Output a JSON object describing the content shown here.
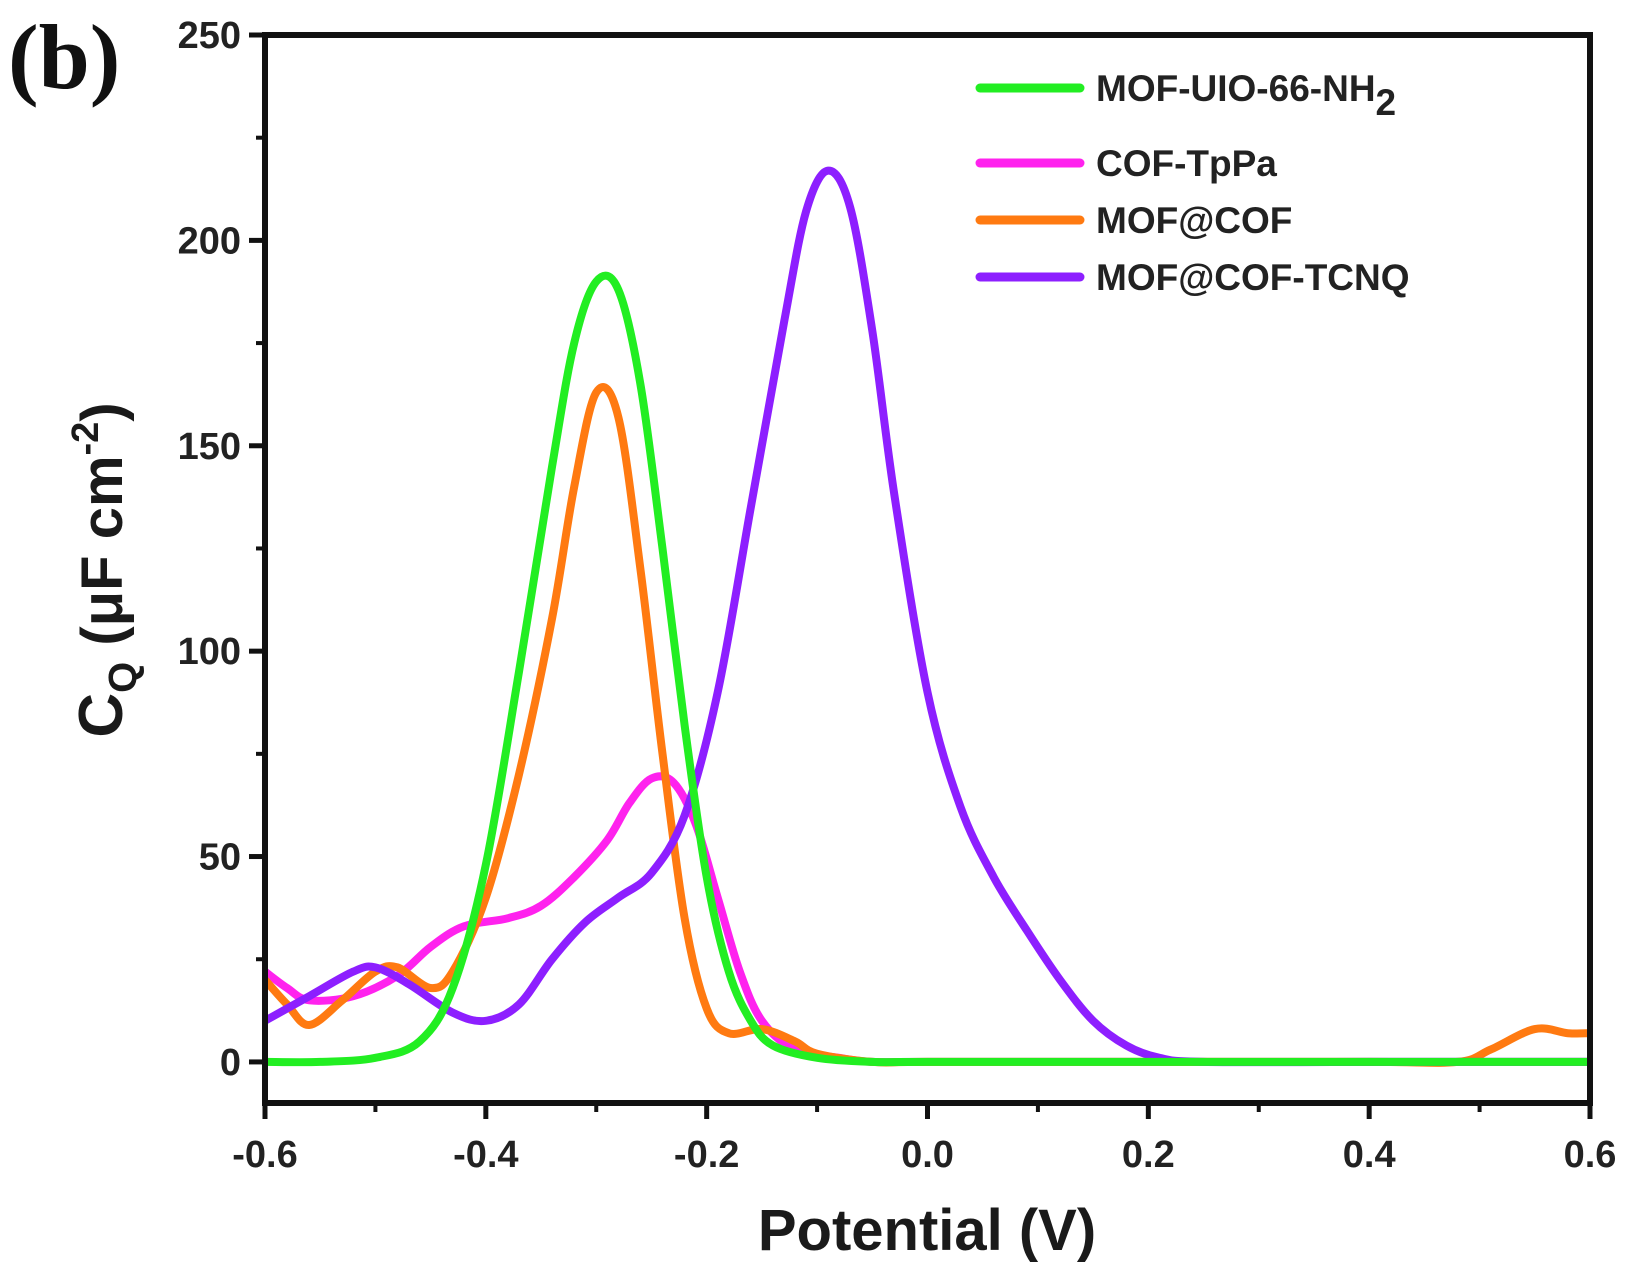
{
  "panel_label": "(b)",
  "chart_data": {
    "type": "line",
    "xlabel": "Potential (V)",
    "ylabel_main": "C",
    "ylabel_sub": "Q",
    "ylabel_unit": " (μF cm",
    "ylabel_sup": "-2",
    "ylabel_close": ")",
    "xlim": [
      -0.6,
      0.6
    ],
    "ylim": [
      -10,
      250
    ],
    "x_ticks": [
      -0.6,
      -0.4,
      -0.2,
      0.0,
      0.2,
      0.4,
      0.6
    ],
    "x_tick_labels": [
      "-0.6",
      "-0.4",
      "-0.2",
      "0.0",
      "0.2",
      "0.4",
      "0.6"
    ],
    "y_ticks": [
      0,
      50,
      100,
      150,
      200,
      250
    ],
    "y_tick_labels": [
      "0",
      "50",
      "100",
      "150",
      "200",
      "250"
    ],
    "legend_position": "top-right",
    "series": [
      {
        "name": "MOF-UIO-66-NH",
        "name_sub": "2",
        "color": "#22ee22",
        "points": [
          [
            -0.6,
            0
          ],
          [
            -0.55,
            0
          ],
          [
            -0.5,
            1
          ],
          [
            -0.46,
            5
          ],
          [
            -0.43,
            18
          ],
          [
            -0.4,
            48
          ],
          [
            -0.37,
            95
          ],
          [
            -0.34,
            145
          ],
          [
            -0.32,
            175
          ],
          [
            -0.3,
            190
          ],
          [
            -0.28,
            188
          ],
          [
            -0.26,
            165
          ],
          [
            -0.24,
            125
          ],
          [
            -0.22,
            82
          ],
          [
            -0.2,
            45
          ],
          [
            -0.18,
            22
          ],
          [
            -0.16,
            10
          ],
          [
            -0.14,
            4
          ],
          [
            -0.1,
            1
          ],
          [
            -0.05,
            0
          ],
          [
            0.0,
            0
          ],
          [
            0.2,
            0
          ],
          [
            0.4,
            0
          ],
          [
            0.6,
            0
          ]
        ]
      },
      {
        "name": "COF-TpPa",
        "color": "#ff22ee",
        "points": [
          [
            -0.6,
            22
          ],
          [
            -0.58,
            18
          ],
          [
            -0.56,
            15
          ],
          [
            -0.52,
            16
          ],
          [
            -0.48,
            21
          ],
          [
            -0.45,
            28
          ],
          [
            -0.42,
            33
          ],
          [
            -0.38,
            35
          ],
          [
            -0.35,
            38
          ],
          [
            -0.32,
            45
          ],
          [
            -0.29,
            54
          ],
          [
            -0.27,
            63
          ],
          [
            -0.25,
            69
          ],
          [
            -0.23,
            68
          ],
          [
            -0.21,
            58
          ],
          [
            -0.19,
            40
          ],
          [
            -0.17,
            22
          ],
          [
            -0.15,
            10
          ],
          [
            -0.12,
            3
          ],
          [
            -0.08,
            1
          ],
          [
            -0.05,
            0
          ],
          [
            0.0,
            0
          ],
          [
            0.2,
            0
          ],
          [
            0.4,
            0
          ],
          [
            0.6,
            0
          ]
        ]
      },
      {
        "name": "MOF@COF",
        "color": "#ff7a11",
        "points": [
          [
            -0.6,
            20
          ],
          [
            -0.58,
            14
          ],
          [
            -0.56,
            9
          ],
          [
            -0.53,
            15
          ],
          [
            -0.5,
            22
          ],
          [
            -0.48,
            23
          ],
          [
            -0.45,
            18
          ],
          [
            -0.43,
            22
          ],
          [
            -0.4,
            40
          ],
          [
            -0.37,
            70
          ],
          [
            -0.34,
            108
          ],
          [
            -0.32,
            140
          ],
          [
            -0.3,
            163
          ],
          [
            -0.28,
            157
          ],
          [
            -0.26,
            120
          ],
          [
            -0.24,
            75
          ],
          [
            -0.22,
            35
          ],
          [
            -0.2,
            13
          ],
          [
            -0.18,
            7
          ],
          [
            -0.15,
            8
          ],
          [
            -0.12,
            5
          ],
          [
            -0.1,
            2
          ],
          [
            -0.05,
            0
          ],
          [
            0.0,
            0
          ],
          [
            0.2,
            0
          ],
          [
            0.4,
            0
          ],
          [
            0.48,
            0
          ],
          [
            0.51,
            3
          ],
          [
            0.55,
            8
          ],
          [
            0.58,
            7
          ],
          [
            0.6,
            7
          ]
        ]
      },
      {
        "name": "MOF@COF-TCNQ",
        "color": "#8d1fff",
        "points": [
          [
            -0.6,
            10
          ],
          [
            -0.56,
            16
          ],
          [
            -0.52,
            22
          ],
          [
            -0.5,
            23
          ],
          [
            -0.47,
            19
          ],
          [
            -0.43,
            12
          ],
          [
            -0.4,
            10
          ],
          [
            -0.37,
            14
          ],
          [
            -0.34,
            25
          ],
          [
            -0.31,
            34
          ],
          [
            -0.28,
            40
          ],
          [
            -0.25,
            46
          ],
          [
            -0.22,
            60
          ],
          [
            -0.19,
            90
          ],
          [
            -0.16,
            135
          ],
          [
            -0.13,
            180
          ],
          [
            -0.11,
            207
          ],
          [
            -0.09,
            217
          ],
          [
            -0.07,
            208
          ],
          [
            -0.05,
            178
          ],
          [
            -0.03,
            138
          ],
          [
            0.0,
            90
          ],
          [
            0.03,
            62
          ],
          [
            0.06,
            45
          ],
          [
            0.09,
            32
          ],
          [
            0.12,
            20
          ],
          [
            0.15,
            10
          ],
          [
            0.18,
            4
          ],
          [
            0.21,
            1
          ],
          [
            0.25,
            0
          ],
          [
            0.4,
            0
          ],
          [
            0.6,
            0
          ]
        ]
      }
    ]
  }
}
